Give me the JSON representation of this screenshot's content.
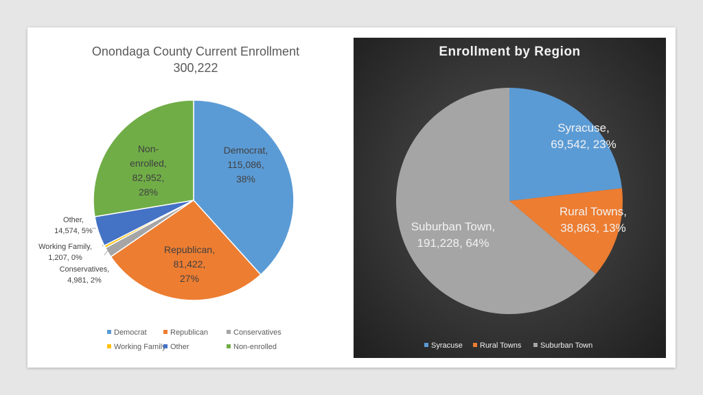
{
  "chart_data": [
    {
      "type": "pie",
      "title": "Onondaga County Current Enrollment",
      "subtitle": "300,222",
      "slices": [
        {
          "name": "Democrat",
          "value": 115086,
          "label_lines": [
            "Democrat,",
            "115,086,",
            "38%"
          ],
          "color": "#5b9bd5"
        },
        {
          "name": "Republican",
          "value": 81422,
          "label_lines": [
            "Republican,",
            "81,422,",
            "27%"
          ],
          "color": "#ed7d31"
        },
        {
          "name": "Conservatives",
          "value": 4981,
          "label_lines": [
            "Conservatives,",
            "4,981, 2%"
          ],
          "color": "#a5a5a5"
        },
        {
          "name": "Working Family",
          "value": 1207,
          "label_lines": [
            "Working Family,",
            "1,207, 0%"
          ],
          "color": "#ffc000"
        },
        {
          "name": "Other",
          "value": 14574,
          "label_lines": [
            "Other,",
            "14,574, 5%"
          ],
          "color": "#4472c4"
        },
        {
          "name": "Non-enrolled",
          "value": 82952,
          "label_lines": [
            "Non-",
            "enrolled,",
            "82,952,",
            "28%"
          ],
          "color": "#70ad47"
        }
      ],
      "legend": [
        "Democrat",
        "Republican",
        "Conservatives",
        "Working Family",
        "Other",
        "Non-enrolled"
      ],
      "legend_placement": "bottom"
    },
    {
      "type": "pie",
      "title": "Enrollment by Region",
      "slices": [
        {
          "name": "Syracuse",
          "value": 69542,
          "label_lines": [
            "Syracuse,",
            "69,542, 23%"
          ],
          "color": "#5b9bd5"
        },
        {
          "name": "Rural Towns",
          "value": 38863,
          "label_lines": [
            "Rural Towns,",
            "38,863, 13%"
          ],
          "color": "#ed7d31"
        },
        {
          "name": "Suburban Town",
          "value": 191228,
          "label_lines": [
            "Suburban Town,",
            "191,228, 64%"
          ],
          "color": "#a5a5a5"
        }
      ],
      "legend": [
        "Syracuse",
        "Rural Towns",
        "Suburban Town"
      ],
      "legend_placement": "bottom"
    }
  ]
}
